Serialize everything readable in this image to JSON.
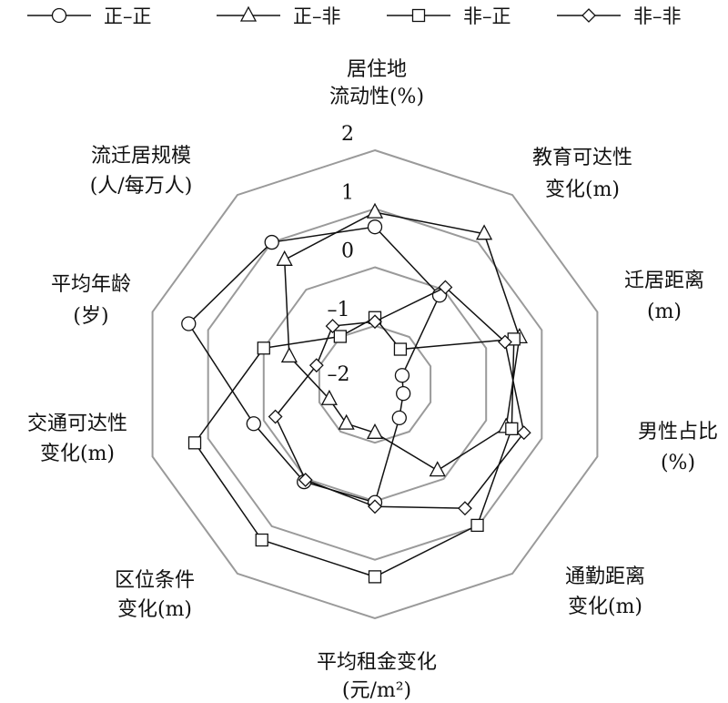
{
  "chart_data": {
    "type": "radar",
    "range": [
      -2,
      2
    ],
    "ticks": [
      "2",
      "1",
      "0",
      "–1",
      "–2"
    ],
    "tick_values": [
      2,
      1,
      0,
      -1,
      -2
    ],
    "axes": [
      {
        "line1": "居住地",
        "line2": "流动性(%)"
      },
      {
        "line1": "教育可达性",
        "line2": "变化(m)"
      },
      {
        "line1": "迁居距离",
        "line2": "(m)"
      },
      {
        "line1": "男性占比",
        "line2": "(%)"
      },
      {
        "line1": "通勤距离",
        "line2": "变化(m)"
      },
      {
        "line1": "平均租金变化",
        "line2": "(元/m²)"
      },
      {
        "line1": "区位条件",
        "line2": "变化(m)"
      },
      {
        "line1": "交通可达性",
        "line2": "变化(m)"
      },
      {
        "line1": "平均年龄",
        "line2": "(岁)"
      },
      {
        "line1": "流迁居规模",
        "line2": "(人/每万人)"
      }
    ],
    "series": [
      {
        "name": "正–正",
        "marker": "circle",
        "values": [
          0.69,
          -0.12,
          -1.51,
          -1.49,
          -1.29,
          0.02,
          0.06,
          0.18,
          1.35,
          1.0
        ]
      },
      {
        "name": "正–非",
        "marker": "triangle",
        "values": [
          0.94,
          1.18,
          0.6,
          0.36,
          -0.18,
          -1.17,
          -1.17,
          -1.18,
          -0.46,
          0.63
        ]
      },
      {
        "name": "非–正",
        "marker": "square",
        "values": [
          -0.86,
          -1.26,
          0.5,
          0.46,
          0.98,
          1.29,
          1.29,
          1.24,
          0.0,
          -0.99
        ]
      },
      {
        "name": "非–非",
        "marker": "diamond",
        "values": [
          -0.93,
          0.05,
          0.34,
          0.68,
          0.62,
          0.09,
          0.02,
          -0.21,
          -0.95,
          -0.77
        ]
      }
    ],
    "grid": true,
    "legend": "top",
    "colors": {
      "line": "#111111",
      "grid": "#9a9a9a",
      "marker_fill": "#ffffff"
    }
  }
}
